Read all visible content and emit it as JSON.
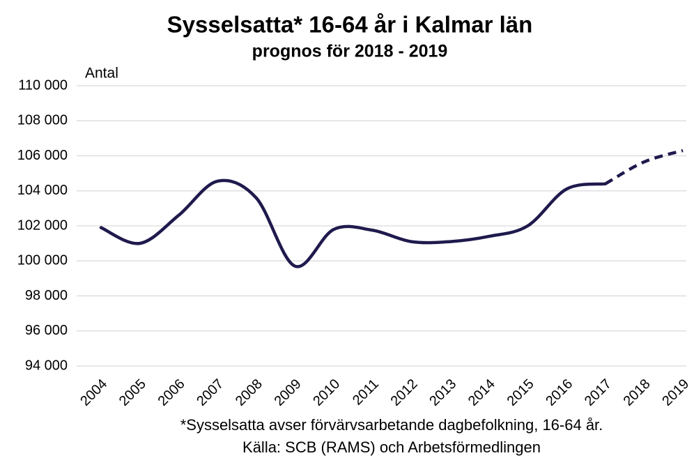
{
  "chart_data": {
    "type": "line",
    "title": "Sysselsatta* 16-64 år i Kalmar län",
    "subtitle": "prognos för 2018 - 2019",
    "y_label": "Antal",
    "notes": [
      "*Sysselsatta avser förvärvsarbetande dagbefolkning, 16-64 år.",
      "Källa: SCB (RAMS) och Arbetsförmedlingen"
    ],
    "categories": [
      "2004",
      "2005",
      "2006",
      "2007",
      "2008",
      "2009",
      "2010",
      "2011",
      "2012",
      "2013",
      "2014",
      "2015",
      "2016",
      "2017",
      "2018",
      "2019"
    ],
    "series": [
      {
        "color": "#1f1a4d",
        "dashed": false,
        "values": [
          101900,
          101000,
          102600,
          104550,
          103600,
          99700,
          101800,
          101750,
          101100,
          101100,
          101400,
          102000,
          104100,
          104400,
          null,
          null
        ]
      },
      {
        "color": "#1f1a4d",
        "dashed": true,
        "values": [
          null,
          null,
          null,
          null,
          null,
          null,
          null,
          null,
          null,
          null,
          null,
          null,
          null,
          104400,
          105650,
          106300
        ]
      }
    ],
    "ylim": [
      94000,
      110000
    ],
    "yticks": [
      {
        "value": 94000,
        "label": "94 000"
      },
      {
        "value": 96000,
        "label": "96 000"
      },
      {
        "value": 98000,
        "label": "98 000"
      },
      {
        "value": 100000,
        "label": "100 000"
      },
      {
        "value": 102000,
        "label": "102 000"
      },
      {
        "value": 104000,
        "label": "104 000"
      },
      {
        "value": 106000,
        "label": "106 000"
      },
      {
        "value": 108000,
        "label": "108 000"
      },
      {
        "value": 110000,
        "label": "110 000"
      }
    ],
    "grid": true
  }
}
